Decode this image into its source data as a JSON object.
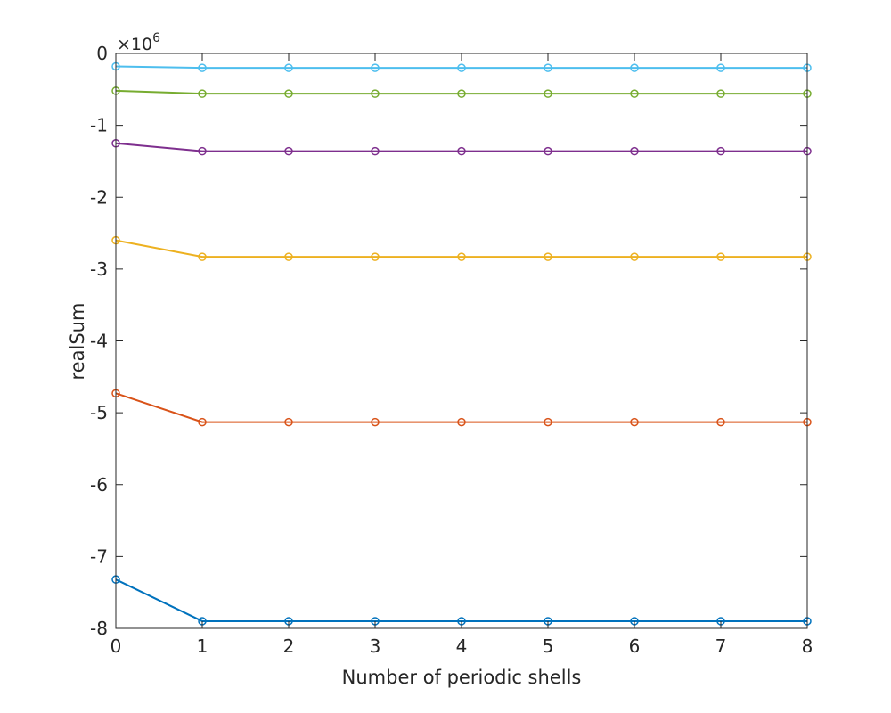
{
  "chart_data": {
    "type": "line",
    "title": "",
    "xlabel": "Number of periodic shells",
    "ylabel": "realSum",
    "y_exponent": {
      "base": "×10",
      "power": "6"
    },
    "x": [
      0,
      1,
      2,
      3,
      4,
      5,
      6,
      7,
      8
    ],
    "xlim": [
      0,
      8
    ],
    "ylim": [
      -8,
      0
    ],
    "x_ticks": [
      "0",
      "1",
      "2",
      "3",
      "4",
      "5",
      "6",
      "7",
      "8"
    ],
    "y_ticks": [
      "0",
      "-1",
      "-2",
      "-3",
      "-4",
      "-5",
      "-6",
      "-7",
      "-8"
    ],
    "y_tick_values": [
      0,
      -1,
      -2,
      -3,
      -4,
      -5,
      -6,
      -7,
      -8
    ],
    "grid": false,
    "marker": "circle",
    "series": [
      {
        "color": "#0072BD",
        "values": [
          -7.32,
          -7.9,
          -7.9,
          -7.9,
          -7.9,
          -7.9,
          -7.9,
          -7.9,
          -7.9
        ]
      },
      {
        "color": "#D95319",
        "values": [
          -4.73,
          -5.13,
          -5.13,
          -5.13,
          -5.13,
          -5.13,
          -5.13,
          -5.13,
          -5.13
        ]
      },
      {
        "color": "#EDB120",
        "values": [
          -2.6,
          -2.83,
          -2.83,
          -2.83,
          -2.83,
          -2.83,
          -2.83,
          -2.83,
          -2.83
        ]
      },
      {
        "color": "#7E2F8E",
        "values": [
          -1.25,
          -1.36,
          -1.36,
          -1.36,
          -1.36,
          -1.36,
          -1.36,
          -1.36,
          -1.36
        ]
      },
      {
        "color": "#77AC30",
        "values": [
          -0.52,
          -0.56,
          -0.56,
          -0.56,
          -0.56,
          -0.56,
          -0.56,
          -0.56,
          -0.56
        ]
      },
      {
        "color": "#4DBEEE",
        "values": [
          -0.18,
          -0.2,
          -0.2,
          -0.2,
          -0.2,
          -0.2,
          -0.2,
          -0.2,
          -0.2
        ]
      }
    ]
  }
}
